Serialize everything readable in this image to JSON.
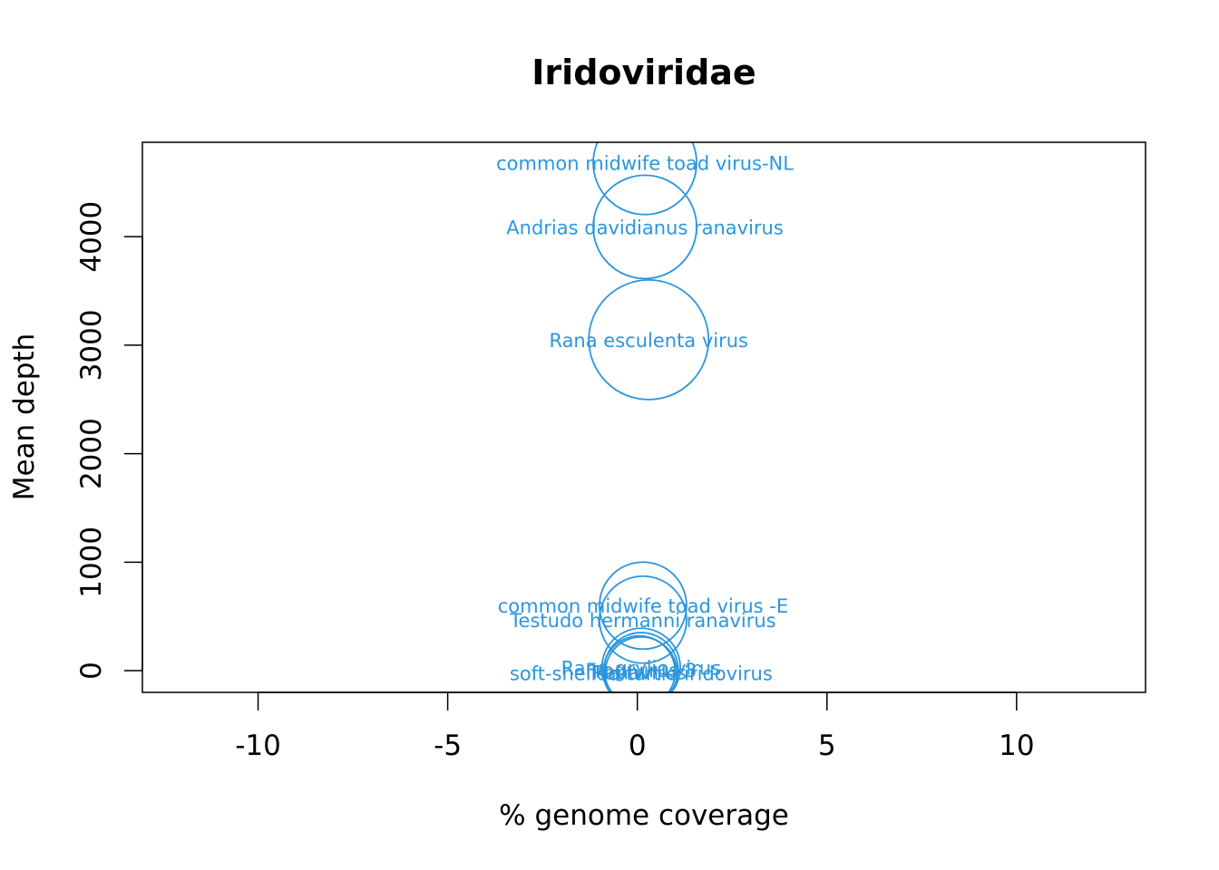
{
  "chart_data": {
    "type": "scatter",
    "title": "Iridoviridae",
    "xlabel": "% genome coverage",
    "ylabel": "Mean depth",
    "xlim": [
      -13.05,
      13.4
    ],
    "ylim": [
      -200,
      4870
    ],
    "xticks": [
      -10,
      -5,
      0,
      5,
      10
    ],
    "yticks": [
      0,
      1000,
      2000,
      3000,
      4000
    ],
    "xtick_labels": [
      "-10",
      "-5",
      "0",
      "5",
      "10"
    ],
    "ytick_labels": [
      "0",
      "1000",
      "2000",
      "3000",
      "4000"
    ],
    "point_color": "#2b96de",
    "grid": false,
    "legend": "none",
    "points": [
      {
        "label": "common midwife toad virus-NL",
        "x": 0.2,
        "y": 4680,
        "size": 0.95
      },
      {
        "label": "Andrias davidianus ranavirus",
        "x": 0.2,
        "y": 4090,
        "size": 0.95
      },
      {
        "label": "Rana esculenta virus",
        "x": 0.3,
        "y": 3050,
        "size": 1.1
      },
      {
        "label": "common midwife toad virus -E",
        "x": 0.15,
        "y": 600,
        "size": 0.8
      },
      {
        "label": "Testudo hermanni ranavirus",
        "x": 0.15,
        "y": 470,
        "size": 0.8
      },
      {
        "label": "Rana grylio virus",
        "x": 0.1,
        "y": 30,
        "size": 0.72
      },
      {
        "label": "Frog virus 3",
        "x": 0.1,
        "y": 10,
        "size": 0.68
      },
      {
        "label": "Ranavirus",
        "x": 0.05,
        "y": -10,
        "size": 0.66
      },
      {
        "label": "soft-shelled turtle iridovirus",
        "x": 0.1,
        "y": -20,
        "size": 0.66
      }
    ]
  }
}
